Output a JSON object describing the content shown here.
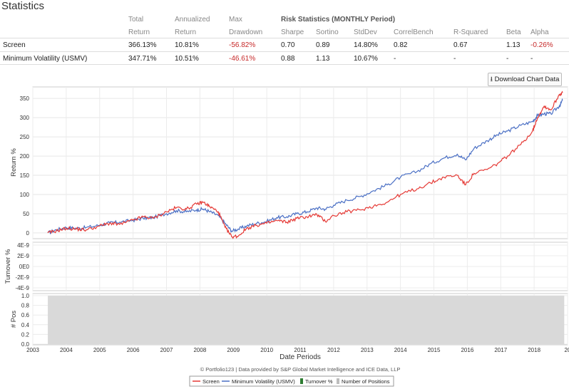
{
  "title": "Statistics",
  "table": {
    "headers": {
      "total": [
        "Total",
        "Return"
      ],
      "annualized": [
        "Annualized",
        "Return"
      ],
      "maxdd": [
        "Max",
        "Drawdown"
      ],
      "risk_group": "Risk Statistics (MONTHLY Period)",
      "sharpe": "Sharpe",
      "sortino": "Sortino",
      "stddev": "StdDev",
      "correl": "CorrelBench",
      "rsq": "R-Squared",
      "beta": "Beta",
      "alpha": "Alpha"
    },
    "rows": [
      {
        "name": "Screen",
        "total": "366.13%",
        "annualized": "10.81%",
        "maxdd": "-56.82%",
        "sharpe": "0.70",
        "sortino": "0.89",
        "stddev": "14.80%",
        "correl": "0.82",
        "rsq": "0.67",
        "beta": "1.13",
        "alpha": "-0.26%"
      },
      {
        "name": "Minimum Volatility (USMV)",
        "total": "347.71%",
        "annualized": "10.51%",
        "maxdd": "-46.61%",
        "sharpe": "0.88",
        "sortino": "1.13",
        "stddev": "10.67%",
        "correl": "-",
        "rsq": "-",
        "beta": "-",
        "alpha": "-"
      }
    ]
  },
  "download_label": "Download Chart Data",
  "footer_credit": "© Portfolio123 | Data provided by S&P Global Market Intelligence and ICE Data, LLP",
  "colors": {
    "screen": "#e53935",
    "usmv": "#4a6fc4",
    "turnover": "#2e7d32",
    "positions": "#d9d9d9"
  },
  "chart_data": [
    {
      "type": "line",
      "title": "",
      "ylabel": "Return %",
      "xlabel": "Date Periods",
      "ylim": [
        -15,
        380
      ],
      "yticks": [
        0,
        50,
        100,
        150,
        200,
        250,
        300,
        350
      ],
      "xlim": [
        2003.0,
        2019.0
      ],
      "xticks": [
        "2003",
        "2004",
        "2005",
        "2006",
        "2007",
        "2008",
        "2009",
        "2010",
        "2011",
        "2012",
        "2013",
        "2014",
        "2015",
        "2016",
        "2017",
        "2018",
        "20"
      ],
      "series": [
        {
          "name": "Screen",
          "points": [
            [
              2003.45,
              0
            ],
            [
              2003.7,
              5
            ],
            [
              2004.0,
              12
            ],
            [
              2004.3,
              10
            ],
            [
              2004.6,
              8
            ],
            [
              2005.0,
              18
            ],
            [
              2005.3,
              25
            ],
            [
              2005.6,
              22
            ],
            [
              2006.0,
              33
            ],
            [
              2006.3,
              42
            ],
            [
              2006.6,
              38
            ],
            [
              2007.0,
              55
            ],
            [
              2007.3,
              66
            ],
            [
              2007.6,
              62
            ],
            [
              2007.9,
              75
            ],
            [
              2008.1,
              80
            ],
            [
              2008.3,
              68
            ],
            [
              2008.55,
              55
            ],
            [
              2008.75,
              15
            ],
            [
              2008.95,
              -10
            ],
            [
              2009.15,
              -8
            ],
            [
              2009.4,
              12
            ],
            [
              2009.7,
              20
            ],
            [
              2010.0,
              25
            ],
            [
              2010.3,
              32
            ],
            [
              2010.6,
              28
            ],
            [
              2010.9,
              38
            ],
            [
              2011.2,
              42
            ],
            [
              2011.5,
              48
            ],
            [
              2011.75,
              30
            ],
            [
              2012.0,
              45
            ],
            [
              2012.4,
              55
            ],
            [
              2012.8,
              60
            ],
            [
              2013.2,
              70
            ],
            [
              2013.6,
              80
            ],
            [
              2014.0,
              100
            ],
            [
              2014.5,
              115
            ],
            [
              2014.9,
              130
            ],
            [
              2015.3,
              145
            ],
            [
              2015.7,
              150
            ],
            [
              2015.95,
              125
            ],
            [
              2016.2,
              155
            ],
            [
              2016.6,
              165
            ],
            [
              2016.9,
              180
            ],
            [
              2017.2,
              200
            ],
            [
              2017.6,
              230
            ],
            [
              2017.95,
              265
            ],
            [
              2018.1,
              300
            ],
            [
              2018.3,
              330
            ],
            [
              2018.5,
              320
            ],
            [
              2018.75,
              360
            ],
            [
              2018.85,
              365
            ]
          ]
        },
        {
          "name": "Minimum Volatility (USMV)",
          "points": [
            [
              2003.45,
              0
            ],
            [
              2003.7,
              8
            ],
            [
              2004.0,
              14
            ],
            [
              2004.3,
              12
            ],
            [
              2004.6,
              14
            ],
            [
              2005.0,
              20
            ],
            [
              2005.3,
              26
            ],
            [
              2005.6,
              28
            ],
            [
              2006.0,
              33
            ],
            [
              2006.3,
              38
            ],
            [
              2006.6,
              40
            ],
            [
              2007.0,
              50
            ],
            [
              2007.3,
              58
            ],
            [
              2007.6,
              55
            ],
            [
              2007.9,
              60
            ],
            [
              2008.1,
              62
            ],
            [
              2008.3,
              55
            ],
            [
              2008.55,
              45
            ],
            [
              2008.75,
              25
            ],
            [
              2008.95,
              5
            ],
            [
              2009.15,
              10
            ],
            [
              2009.4,
              18
            ],
            [
              2009.7,
              25
            ],
            [
              2010.0,
              30
            ],
            [
              2010.3,
              40
            ],
            [
              2010.6,
              42
            ],
            [
              2010.9,
              50
            ],
            [
              2011.2,
              55
            ],
            [
              2011.5,
              65
            ],
            [
              2011.75,
              62
            ],
            [
              2012.0,
              72
            ],
            [
              2012.4,
              85
            ],
            [
              2012.8,
              95
            ],
            [
              2013.2,
              110
            ],
            [
              2013.6,
              125
            ],
            [
              2014.0,
              145
            ],
            [
              2014.5,
              160
            ],
            [
              2014.9,
              180
            ],
            [
              2015.3,
              195
            ],
            [
              2015.7,
              205
            ],
            [
              2015.95,
              190
            ],
            [
              2016.2,
              220
            ],
            [
              2016.6,
              240
            ],
            [
              2016.9,
              255
            ],
            [
              2017.2,
              265
            ],
            [
              2017.6,
              280
            ],
            [
              2017.95,
              290
            ],
            [
              2018.1,
              305
            ],
            [
              2018.3,
              310
            ],
            [
              2018.5,
              310
            ],
            [
              2018.75,
              330
            ],
            [
              2018.85,
              345
            ]
          ]
        }
      ]
    },
    {
      "type": "line",
      "ylabel": "Turnover %",
      "yticks": [
        "4E-9",
        "2E-9",
        "0E0",
        "-2E-9",
        "-4E-9"
      ],
      "ytick_values": [
        4e-09,
        2e-09,
        0,
        -2e-09,
        -4e-09
      ],
      "series": [
        {
          "name": "Turnover %",
          "values": []
        }
      ]
    },
    {
      "type": "bar",
      "ylabel": "# Pos",
      "yticks": [
        "1.0",
        "0.8",
        "0.6",
        "0.4",
        "0.2",
        "0.0"
      ],
      "ytick_values": [
        1.0,
        0.8,
        0.6,
        0.4,
        0.2,
        0.0
      ],
      "series": [
        {
          "name": "Number of Positions",
          "start": 2003.45,
          "end": 2018.9,
          "value": 1.0
        }
      ]
    }
  ],
  "legend": [
    "Screen",
    "Minimum Volatility (USMV)",
    "Turnover %",
    "Number of Positions"
  ]
}
